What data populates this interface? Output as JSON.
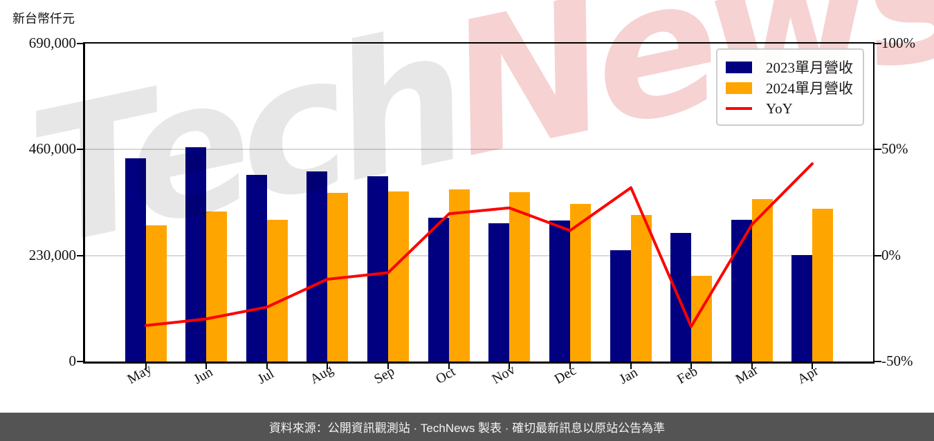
{
  "chart": {
    "unit_label": "新台幣仟元",
    "watermark": {
      "part1": "Tech",
      "part2": "News"
    }
  },
  "footer": {
    "text": "資料來源：公開資訊觀測站 · TechNews 製表 · 確切最新訊息以原站公告為準"
  },
  "chart_data": {
    "type": "bar",
    "title": "",
    "categories": [
      "May",
      "Jun",
      "Jul",
      "Aug",
      "Sep",
      "Oct",
      "Nov",
      "Dec",
      "Jan",
      "Feb",
      "Mar",
      "Apr"
    ],
    "series": [
      {
        "name": "2023單月營收",
        "type": "bar",
        "axis": "left",
        "color": "#000080",
        "values": [
          441000,
          464500,
          405500,
          412000,
          402000,
          312000,
          299500,
          306000,
          241000,
          279500,
          307000,
          231000
        ]
      },
      {
        "name": "2024單月營收",
        "type": "bar",
        "axis": "left",
        "color": "#FFA500",
        "values": [
          295500,
          325500,
          307000,
          366000,
          369500,
          373500,
          367000,
          342000,
          318000,
          186000,
          352000,
          331000
        ]
      },
      {
        "name": "YoY",
        "type": "line",
        "axis": "right",
        "color": "#FF0000",
        "values": [
          -33.0,
          -29.9,
          -24.3,
          -11.2,
          -8.1,
          19.7,
          22.5,
          11.8,
          32.0,
          -33.5,
          14.7,
          43.3
        ]
      }
    ],
    "left_axis": {
      "label": "新台幣仟元",
      "min": 0,
      "max": 690000,
      "tick_values": [
        690000,
        460000,
        230000,
        0
      ],
      "tick_labels": [
        "690,000",
        "460,000",
        "230,000",
        "0"
      ]
    },
    "right_axis": {
      "label": "%",
      "min": -50,
      "max": 100,
      "tick_values": [
        100,
        50,
        0,
        -50
      ],
      "tick_labels": [
        "100%",
        "50%",
        "0%",
        "-50%"
      ]
    },
    "grid": "horizontal",
    "legend_position": "top-right",
    "gridline_color": "#d9d9d9"
  }
}
